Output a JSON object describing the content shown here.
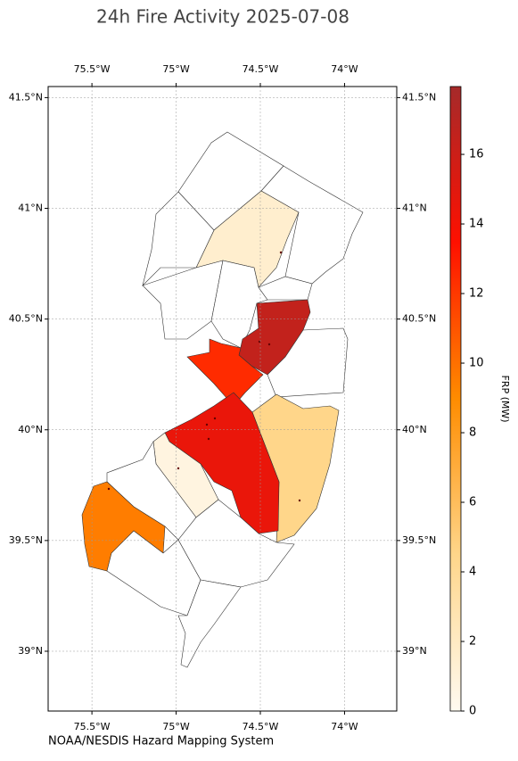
{
  "chart_data": {
    "type": "choropleth",
    "title": "24h Fire Activity 2025-07-08",
    "source": "NOAA/NESDIS Hazard Mapping System",
    "xlim": [
      -75.76,
      -73.69
    ],
    "ylim": [
      38.73,
      41.55
    ],
    "xticks": [
      {
        "value": -75.5,
        "label": "75.5°W"
      },
      {
        "value": -75,
        "label": "75°W"
      },
      {
        "value": -74.5,
        "label": "74.5°W"
      },
      {
        "value": -74,
        "label": "74°W"
      }
    ],
    "yticks": [
      {
        "value": 39,
        "label": "39°N"
      },
      {
        "value": 39.5,
        "label": "39.5°N"
      },
      {
        "value": 40,
        "label": "40°N"
      },
      {
        "value": 40.5,
        "label": "40.5°N"
      },
      {
        "value": 41,
        "label": "41°N"
      },
      {
        "value": 41.5,
        "label": "41.5°N"
      }
    ],
    "grid": true,
    "values": [
      1.5,
      16.5,
      12.5,
      4.5,
      14.5,
      0.7,
      9.5
    ],
    "colorbar_label": "FRP (MW)",
    "clim": [
      0,
      17.95
    ],
    "cticks": [
      0,
      2,
      4,
      6,
      8,
      10,
      12,
      14,
      16
    ],
    "colormap": [
      "#fffaf0",
      "#ffd68a",
      "#ff8c00",
      "#ff1000",
      "#a52a2a"
    ]
  }
}
